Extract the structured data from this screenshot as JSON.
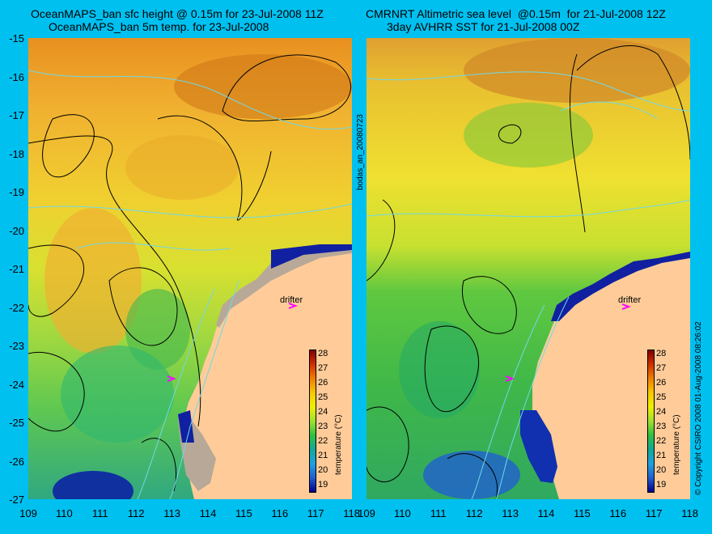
{
  "left": {
    "title1": "OceanMAPS_ban sfc height @ 0.15m for 23-Jul-2008 11Z",
    "title2": "OceanMAPS_ban 5m temp. for 23-Jul-2008"
  },
  "right": {
    "title1": "CMRNRT Altimetric sea level  @0.15m  for 21-Jul-2008 12Z",
    "title2": "3day AVHRR SST for 21-Jul-2008 00Z"
  },
  "side_label": "bodas_an_20080723",
  "copyright": "© Copyright CSIRO 2008   01-Aug-2008 08:26:02",
  "drifter_label": "drifter",
  "colorbar_title": "temperature (°C)",
  "colorbar_ticks": [
    "28",
    "27",
    "26",
    "25",
    "24",
    "23",
    "22",
    "21",
    "20",
    "19"
  ],
  "lat_ticks": [
    "-15",
    "-16",
    "-17",
    "-18",
    "-19",
    "-20",
    "-21",
    "-22",
    "-23",
    "-24",
    "-25",
    "-26",
    "-27"
  ],
  "lon_ticks": [
    "109",
    "110",
    "111",
    "112",
    "113",
    "114",
    "115",
    "116",
    "117",
    "118"
  ],
  "map_extent": {
    "lon": [
      109,
      118
    ],
    "lat": [
      -27,
      -15
    ]
  },
  "colors": {
    "background": "#00c0f0",
    "land": "#ffcc99",
    "shelf": "#b8a898",
    "drifter": "#ff00ff"
  }
}
